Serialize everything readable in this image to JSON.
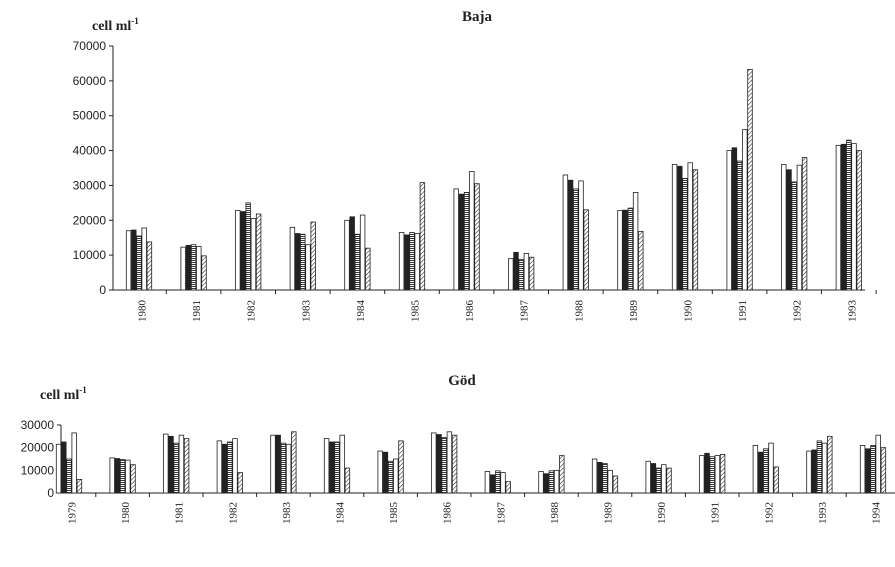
{
  "chart_data": [
    {
      "type": "bar",
      "title": "Baja",
      "ylabel_prefix": "cell ml",
      "ylabel_exp": "-1",
      "ylim": [
        0,
        70000
      ],
      "yticks": [
        0,
        10000,
        20000,
        30000,
        40000,
        50000,
        60000,
        70000
      ],
      "categories": [
        "1980",
        "1981",
        "1982",
        "1983",
        "1984",
        "1985",
        "1986",
        "1987",
        "1988",
        "1989",
        "1990",
        "1991",
        "1992",
        "1993"
      ],
      "groups": [
        [
          17000,
          17200,
          15500,
          17800,
          13800
        ],
        [
          12300,
          12800,
          13000,
          12500,
          9800
        ],
        [
          22800,
          22500,
          25000,
          20500,
          21800
        ],
        [
          18000,
          16200,
          16000,
          13000,
          19500
        ],
        [
          20000,
          21000,
          16000,
          21500,
          12000
        ],
        [
          16500,
          15800,
          16500,
          16200,
          30800
        ],
        [
          29000,
          27500,
          28000,
          34000,
          30500
        ],
        [
          9000,
          10800,
          8800,
          10500,
          9400
        ],
        [
          33000,
          31500,
          29000,
          31300,
          23000
        ],
        [
          22800,
          22900,
          23500,
          28000,
          16800
        ],
        [
          36000,
          35500,
          32000,
          36500,
          34500
        ],
        [
          40000,
          40800,
          37000,
          46000,
          63300
        ],
        [
          36000,
          34500,
          31000,
          35800,
          38000
        ],
        [
          41500,
          41800,
          43000,
          42000,
          40000
        ]
      ],
      "fills": [
        "white",
        "black",
        "hstripe",
        "white",
        "diag"
      ]
    },
    {
      "type": "bar",
      "title": "Göd",
      "ylabel_prefix": "cell ml",
      "ylabel_exp": "-1",
      "ylim": [
        0,
        30000
      ],
      "yticks": [
        0,
        10000,
        20000,
        30000
      ],
      "categories": [
        "1979",
        "1980",
        "1981",
        "1982",
        "1983",
        "1984",
        "1985",
        "1986",
        "1987",
        "1988",
        "1989",
        "1990",
        "1991",
        "1992",
        "1993",
        "1994"
      ],
      "groups": [
        [
          21500,
          22500,
          15000,
          26500,
          6000
        ],
        [
          15500,
          15200,
          14800,
          14500,
          12500
        ],
        [
          26000,
          25000,
          22000,
          25500,
          24000
        ],
        [
          23000,
          21500,
          22500,
          24000,
          9000
        ],
        [
          25500,
          25500,
          22000,
          21500,
          27000
        ],
        [
          24000,
          22500,
          22500,
          25500,
          11000
        ],
        [
          18500,
          18000,
          14000,
          15000,
          23000
        ],
        [
          26500,
          25800,
          24500,
          27000,
          25500
        ],
        [
          9500,
          8000,
          9800,
          9000,
          5000
        ],
        [
          9500,
          8500,
          9800,
          10000,
          16500
        ],
        [
          15000,
          13500,
          13000,
          10000,
          7500
        ],
        [
          14000,
          13000,
          11000,
          12500,
          11000
        ],
        [
          16500,
          17500,
          16000,
          16500,
          17000
        ],
        [
          21000,
          18000,
          19500,
          22000,
          11500
        ],
        [
          18500,
          19000,
          23000,
          22000,
          25000
        ],
        [
          21000,
          19500,
          21000,
          25500,
          20000
        ]
      ],
      "fills": [
        "white",
        "black",
        "hstripe",
        "white",
        "diag"
      ]
    }
  ]
}
